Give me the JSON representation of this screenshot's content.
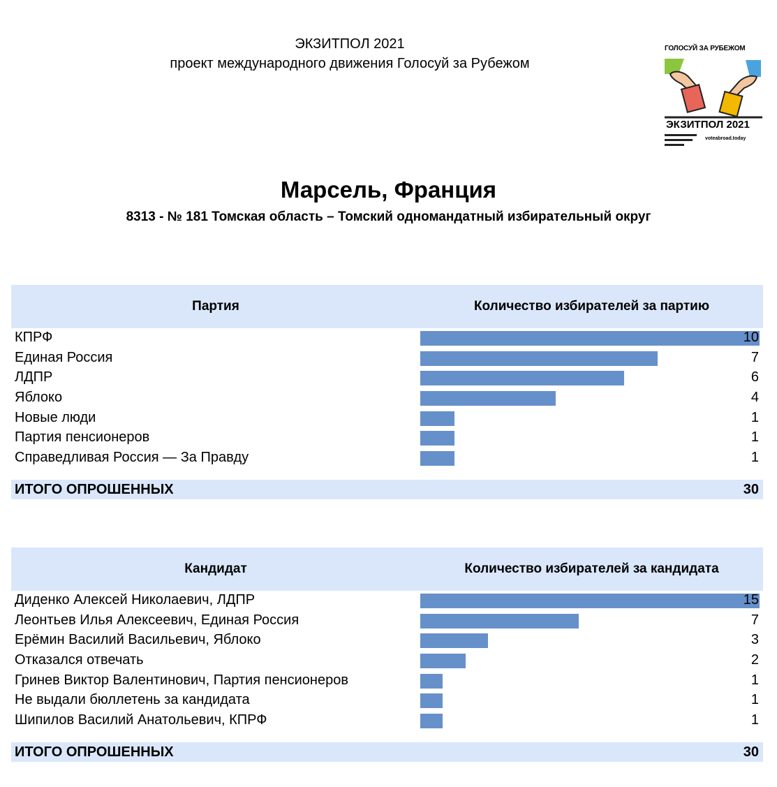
{
  "header": {
    "line1": "ЭКЗИТПОЛ 2021",
    "line2": "проект международного движения Голосуй за Рубежом"
  },
  "logo": {
    "top_text": "ГОЛОСУЙ ЗА РУБЕЖОМ",
    "bottom_text": "ЭКЗИТПОЛ 2021",
    "site": "voteabroad.today"
  },
  "title": "Марсель, Франция",
  "subtitle": "8313 - № 181 Томская область – Томский одномандатный избирательный округ",
  "colors": {
    "header_bg": "#dae7fb",
    "bar": "#6690c9"
  },
  "parties": {
    "col1": "Партия",
    "col2": "Количество избирателей за партию",
    "rows": [
      {
        "name": "КПРФ",
        "value": 10
      },
      {
        "name": "Единая Россия",
        "value": 7
      },
      {
        "name": "ЛДПР",
        "value": 6
      },
      {
        "name": "Яблоко",
        "value": 4
      },
      {
        "name": "Новые люди",
        "value": 1
      },
      {
        "name": "Партия пенсионеров",
        "value": 1
      },
      {
        "name": "Справедливая Россия — За Правду",
        "value": 1
      }
    ],
    "total_label": "ИТОГО ОПРОШЕННЫХ",
    "total_value": "30"
  },
  "candidates": {
    "col1": "Кандидат",
    "col2": "Количество избирателей за кандидата",
    "rows": [
      {
        "name": "Диденко Алексей Николаевич, ЛДПР",
        "value": 15
      },
      {
        "name": "Леонтьев Илья Алексеевич, Единая Россия",
        "value": 7
      },
      {
        "name": "Ерёмин Василий Васильевич, Яблоко",
        "value": 3
      },
      {
        "name": "Отказался отвечать",
        "value": 2
      },
      {
        "name": "Гринев Виктор Валентинович, Партия пенсионеров",
        "value": 1
      },
      {
        "name": "Не выдали бюллетень за кандидата",
        "value": 1
      },
      {
        "name": "Шипилов Василий Анатольевич, КПРФ",
        "value": 1
      }
    ],
    "total_label": "ИТОГО ОПРОШЕННЫХ",
    "total_value": "30"
  }
}
